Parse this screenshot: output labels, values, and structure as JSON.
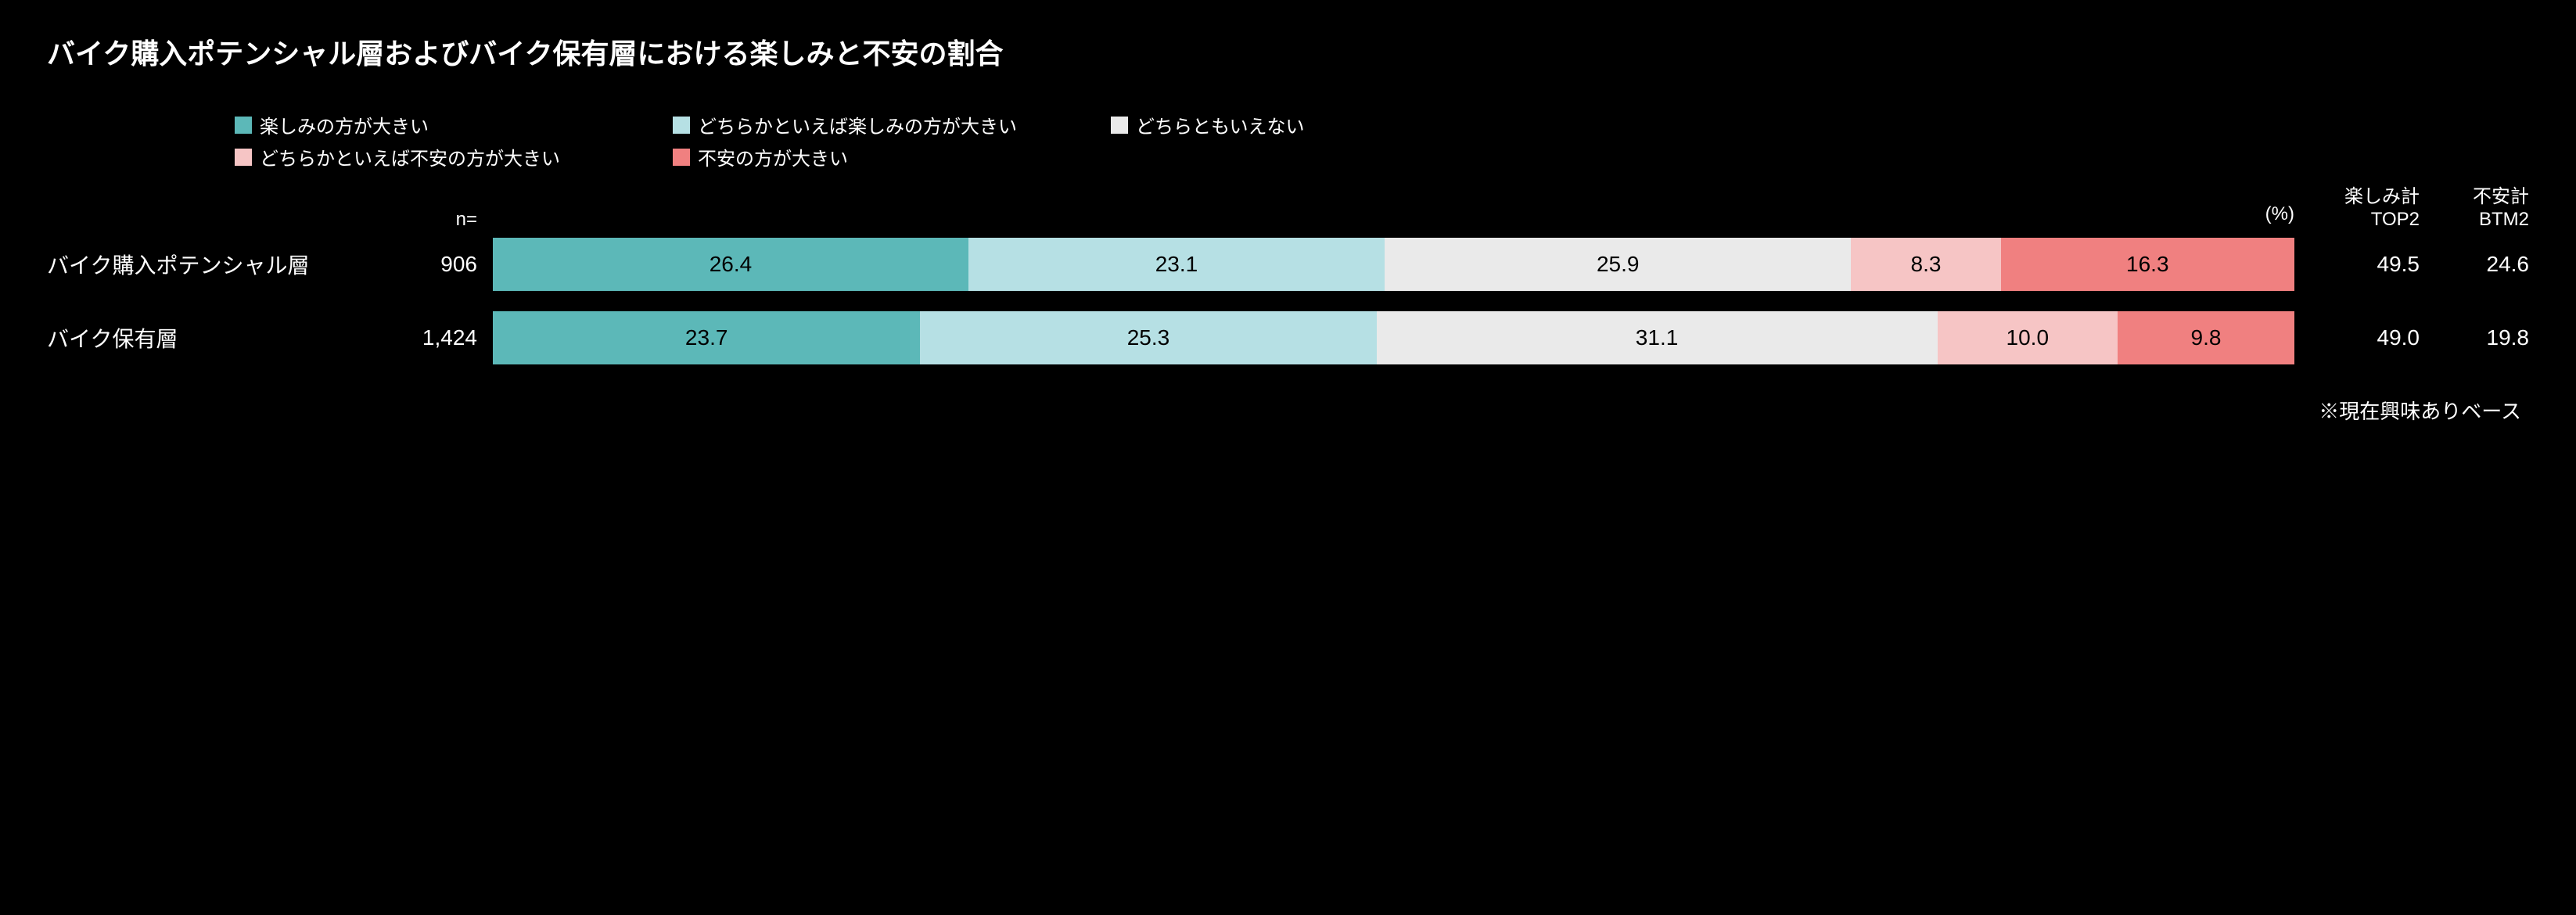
{
  "title": "バイク購入ポテンシャル層およびバイク保有層における楽しみと不安の割合",
  "legend": {
    "items": [
      {
        "label": "楽しみの方が大きい",
        "color": "#5cb8b8"
      },
      {
        "label": "どちらかといえば楽しみの方が大きい",
        "color": "#b6e0e4"
      },
      {
        "label": "どちらともいえない",
        "color": "#eaeaea"
      },
      {
        "label": "どちらかといえば不安の方が大きい",
        "color": "#f6c5c5"
      },
      {
        "label": "不安の方が大きい",
        "color": "#f08080"
      }
    ]
  },
  "columns": {
    "n_header": "n=",
    "percent_mark": "(%)",
    "top2_header_line1": "楽しみ計",
    "top2_header_line2": "TOP2",
    "btm2_header_line1": "不安計",
    "btm2_header_line2": "BTM2"
  },
  "rows": [
    {
      "label": "バイク購入ポテンシャル層",
      "n": "906",
      "segments": [
        26.4,
        23.1,
        25.9,
        8.3,
        16.3
      ],
      "top2": "49.5",
      "btm2": "24.6"
    },
    {
      "label": "バイク保有層",
      "n": "1,424",
      "segments": [
        23.7,
        25.3,
        31.1,
        10.0,
        9.8
      ],
      "top2": "49.0",
      "btm2": "19.8"
    }
  ],
  "colors": [
    "#5cb8b8",
    "#b6e0e4",
    "#eaeaea",
    "#f6c5c5",
    "#f08080"
  ],
  "footnote": "※現在興味ありベース",
  "background_color": "#000000",
  "text_color": "#ffffff"
}
